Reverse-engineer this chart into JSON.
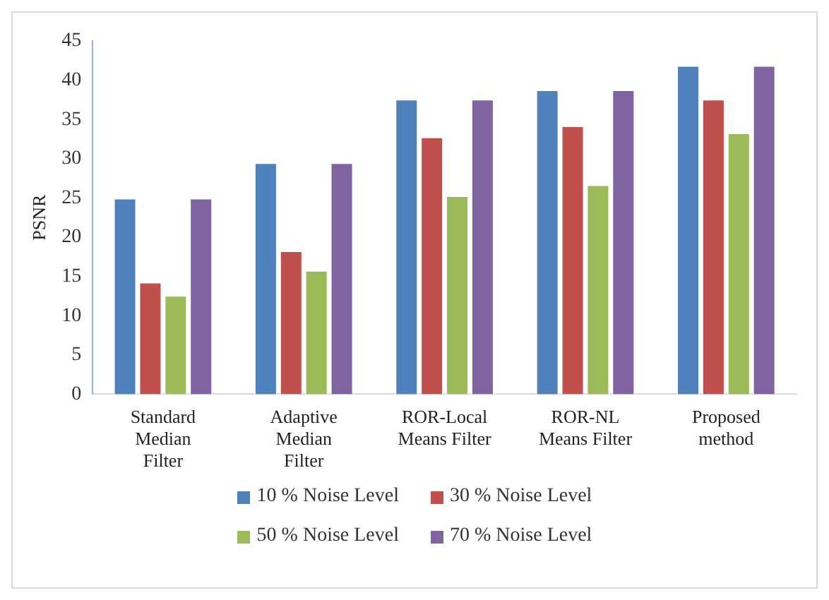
{
  "chart_data": {
    "type": "bar",
    "ylabel": "PSNR",
    "categories": [
      "Standard Median Filter",
      "Adaptive Median Filter",
      "ROR-Local Means Filter",
      "ROR-NL Means Filter",
      "Proposed method"
    ],
    "series": [
      {
        "name": "10 % Noise Level",
        "color": "#4f81bd",
        "values": [
          25,
          29.5,
          37.6,
          38.8,
          41.9
        ]
      },
      {
        "name": "30 % Noise Level",
        "color": "#c0504d",
        "values": [
          14.3,
          18.3,
          32.8,
          34.2,
          37.6
        ]
      },
      {
        "name": "50 % Noise Level",
        "color": "#9bbb59",
        "values": [
          12.6,
          15.8,
          25.3,
          26.7,
          33.3
        ]
      },
      {
        "name": "70 % Noise Level",
        "color": "#8064a2",
        "values": [
          25,
          29.5,
          37.6,
          38.8,
          41.9
        ]
      }
    ],
    "ylim": [
      0,
      45
    ],
    "yticks": [
      0,
      5,
      10,
      15,
      20,
      25,
      30,
      35,
      40,
      45
    ],
    "grid": false,
    "legend": "bottom"
  }
}
